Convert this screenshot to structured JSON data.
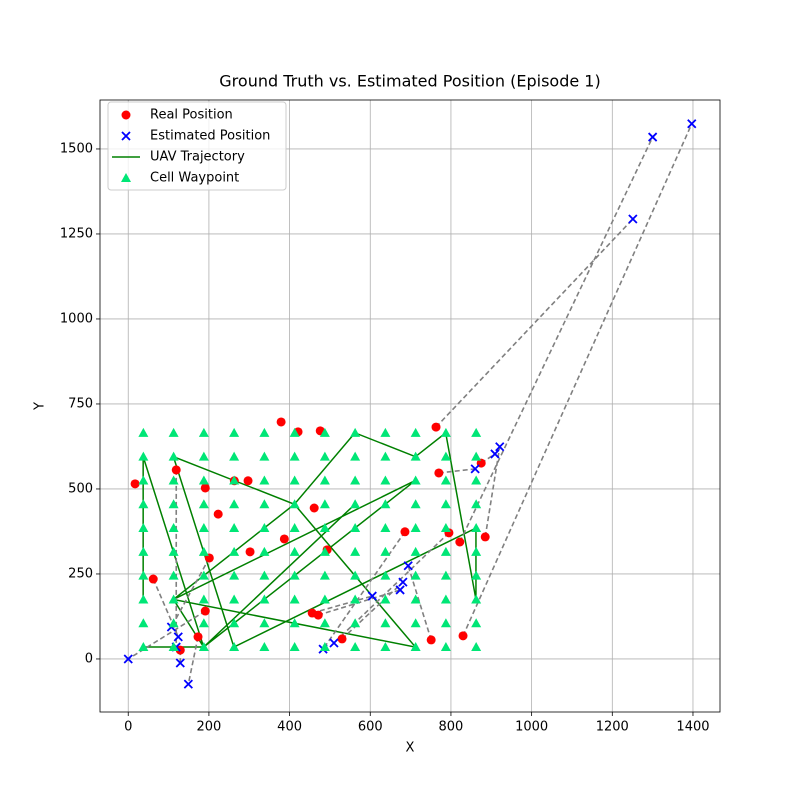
{
  "chart_data": {
    "type": "scatter",
    "title": "Ground Truth vs. Estimated Position (Episode 1)",
    "x_label": "X",
    "y_label": "Y",
    "xlim": [
      -70,
      1467
    ],
    "ylim": [
      -156,
      1644
    ],
    "xticks": [
      0,
      200,
      400,
      600,
      800,
      1000,
      1200,
      1400
    ],
    "yticks": [
      0,
      250,
      500,
      750,
      1000,
      1250,
      1500
    ],
    "grid": true,
    "legend": "upper left",
    "error_line_color": "gray",
    "series": [
      {
        "name": "Real Position",
        "color": "red",
        "marker": "o",
        "x": [
          191,
          173,
          129,
          119,
          62,
          201,
          686,
          795,
          456,
          471,
          530,
          751,
          770,
          875,
          885,
          763,
          822,
          830,
          17,
          191,
          223,
          263,
          297,
          302,
          379,
          421,
          476,
          461,
          387,
          493
        ],
        "y": [
          141,
          65,
          26,
          556,
          235,
          297,
          374,
          371,
          135,
          129,
          59,
          56,
          547,
          576,
          359,
          682,
          344,
          68,
          515,
          503,
          426,
          524,
          524,
          315,
          697,
          668,
          671,
          444,
          353,
          321
        ]
      },
      {
        "name": "Estimated Position",
        "color": "blue",
        "marker": "x",
        "x": [
          0,
          149,
          129,
          119,
          124,
          107,
          483,
          510,
          605,
          674,
          681,
          694,
          860,
          909,
          921,
          1251,
          1300,
          1397
        ],
        "y": [
          0,
          -74,
          -12,
          35,
          65,
          94,
          29,
          47,
          185,
          203,
          226,
          274,
          559,
          603,
          624,
          1294,
          1535,
          1574
        ]
      },
      {
        "name": "UAV Trajectory",
        "color": "green",
        "marker": "line",
        "x": [
          37,
          37,
          187,
          562,
          187,
          712,
          112,
          712,
          412,
          112,
          262,
          862,
          862,
          787,
          712,
          562,
          412,
          112,
          187,
          37
        ],
        "y": [
          175,
          595,
          35,
          455,
          35,
          525,
          175,
          35,
          455,
          595,
          35,
          385,
          175,
          665,
          595,
          665,
          455,
          175,
          35,
          35
        ]
      },
      {
        "name": "Cell Waypoint",
        "color": "#00e676",
        "marker": "^",
        "x": [
          37.5,
          112.5,
          187.5,
          262.5,
          337.5,
          412.5,
          487.5,
          562.5,
          637.5,
          712.5,
          787.5,
          862.5,
          37.5,
          112.5,
          187.5,
          262.5,
          337.5,
          412.5,
          487.5,
          562.5,
          637.5,
          712.5,
          787.5,
          862.5,
          37.5,
          112.5,
          187.5,
          262.5,
          337.5,
          412.5,
          487.5,
          562.5,
          637.5,
          712.5,
          787.5,
          862.5,
          37.5,
          112.5,
          187.5,
          262.5,
          337.5,
          412.5,
          487.5,
          562.5,
          637.5,
          712.5,
          787.5,
          862.5,
          37.5,
          112.5,
          187.5,
          262.5,
          337.5,
          412.5,
          487.5,
          562.5,
          637.5,
          712.5,
          787.5,
          862.5,
          37.5,
          112.5,
          187.5,
          262.5,
          337.5,
          412.5,
          487.5,
          562.5,
          637.5,
          712.5,
          787.5,
          862.5,
          37.5,
          112.5,
          187.5,
          262.5,
          337.5,
          412.5,
          487.5,
          562.5,
          637.5,
          712.5,
          787.5,
          862.5,
          37.5,
          112.5,
          187.5,
          262.5,
          337.5,
          412.5,
          487.5,
          562.5,
          637.5,
          712.5,
          787.5,
          862.5,
          37.5,
          112.5,
          187.5,
          262.5,
          337.5,
          412.5,
          487.5,
          562.5,
          637.5,
          712.5,
          787.5,
          862.5,
          37.5,
          112.5,
          187.5,
          262.5,
          337.5,
          412.5,
          487.5,
          562.5,
          637.5,
          712.5,
          787.5,
          862.5
        ],
        "y": [
          35,
          35,
          35,
          35,
          35,
          35,
          35,
          35,
          35,
          35,
          35,
          35,
          105,
          105,
          105,
          105,
          105,
          105,
          105,
          105,
          105,
          105,
          105,
          105,
          175,
          175,
          175,
          175,
          175,
          175,
          175,
          175,
          175,
          175,
          175,
          175,
          245,
          245,
          245,
          245,
          245,
          245,
          245,
          245,
          245,
          245,
          245,
          245,
          315,
          315,
          315,
          315,
          315,
          315,
          315,
          315,
          315,
          315,
          315,
          315,
          385,
          385,
          385,
          385,
          385,
          385,
          385,
          385,
          385,
          385,
          385,
          385,
          455,
          455,
          455,
          455,
          455,
          455,
          455,
          455,
          455,
          455,
          455,
          455,
          525,
          525,
          525,
          525,
          525,
          525,
          525,
          525,
          525,
          525,
          525,
          525,
          595,
          595,
          595,
          595,
          595,
          595,
          595,
          595,
          595,
          595,
          595,
          595,
          665,
          665,
          665,
          665,
          665,
          665,
          665,
          665,
          665,
          665,
          665,
          665
        ]
      }
    ]
  }
}
